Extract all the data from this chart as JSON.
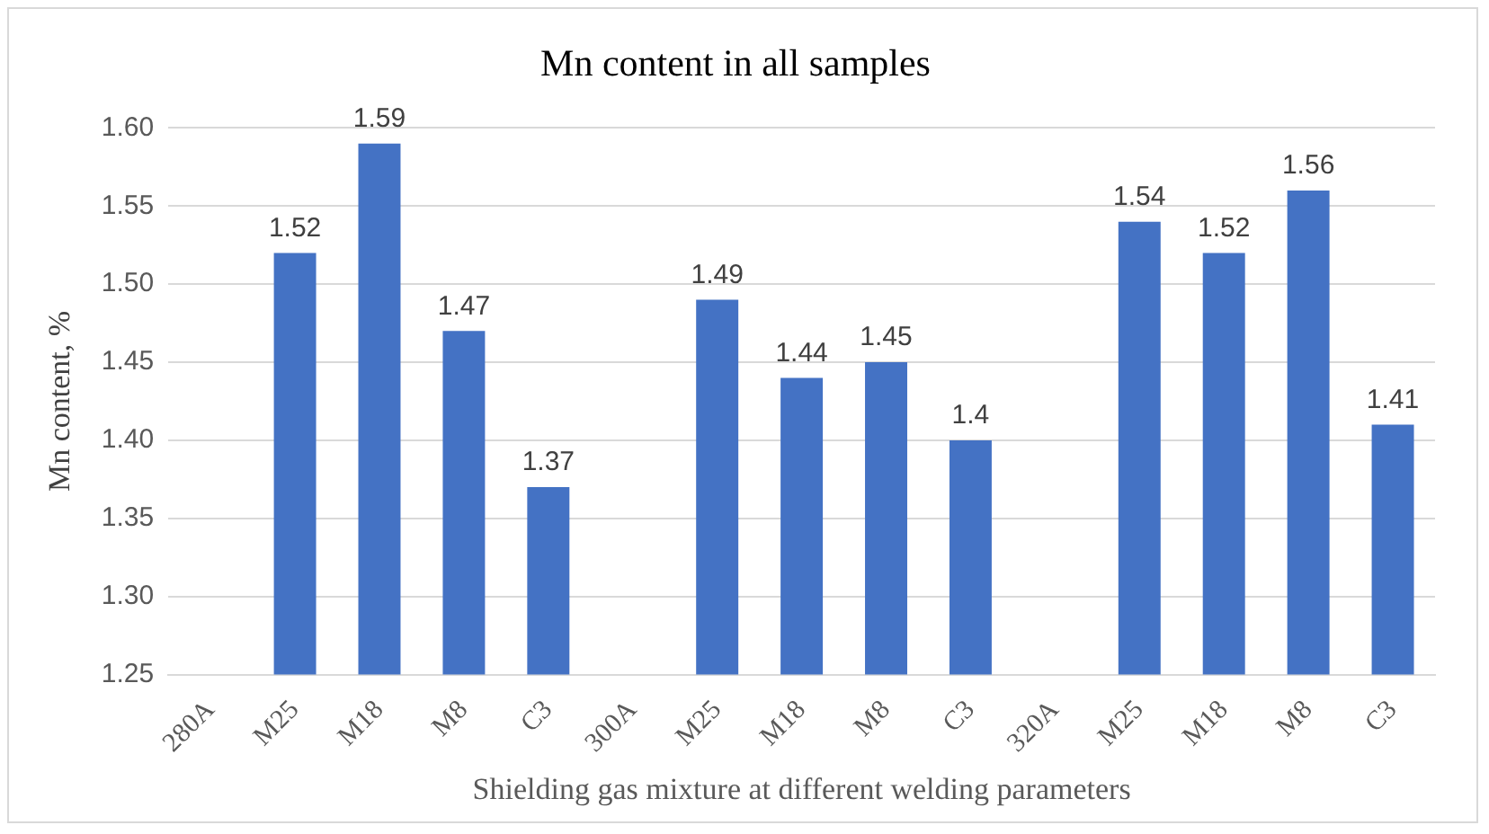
{
  "chart_data": {
    "type": "bar",
    "title": "Mn content in all samples",
    "xlabel": "Shielding gas mixture at different welding parameters",
    "ylabel": "Mn content, %",
    "categories": [
      "280A",
      "M25",
      "M18",
      "M8",
      "C3",
      "300A",
      "M25",
      "M18",
      "M8",
      "C3",
      "320A",
      "M25",
      "M18",
      "M8",
      "C3"
    ],
    "values": [
      null,
      1.52,
      1.59,
      1.47,
      1.37,
      null,
      1.49,
      1.44,
      1.45,
      1.4,
      null,
      1.54,
      1.52,
      1.56,
      1.41
    ],
    "color": "#4472c4",
    "ylim": [
      1.25,
      1.6
    ],
    "yticks": [
      {
        "value": 1.25,
        "label": "1.25"
      },
      {
        "value": 1.3,
        "label": "1.30"
      },
      {
        "value": 1.35,
        "label": "1.35"
      },
      {
        "value": 1.4,
        "label": "1.40"
      },
      {
        "value": 1.45,
        "label": "1.45"
      },
      {
        "value": 1.5,
        "label": "1.50"
      },
      {
        "value": 1.55,
        "label": "1.55"
      },
      {
        "value": 1.6,
        "label": "1.60"
      }
    ],
    "grid": "y",
    "data_labels": true,
    "legend": false
  }
}
